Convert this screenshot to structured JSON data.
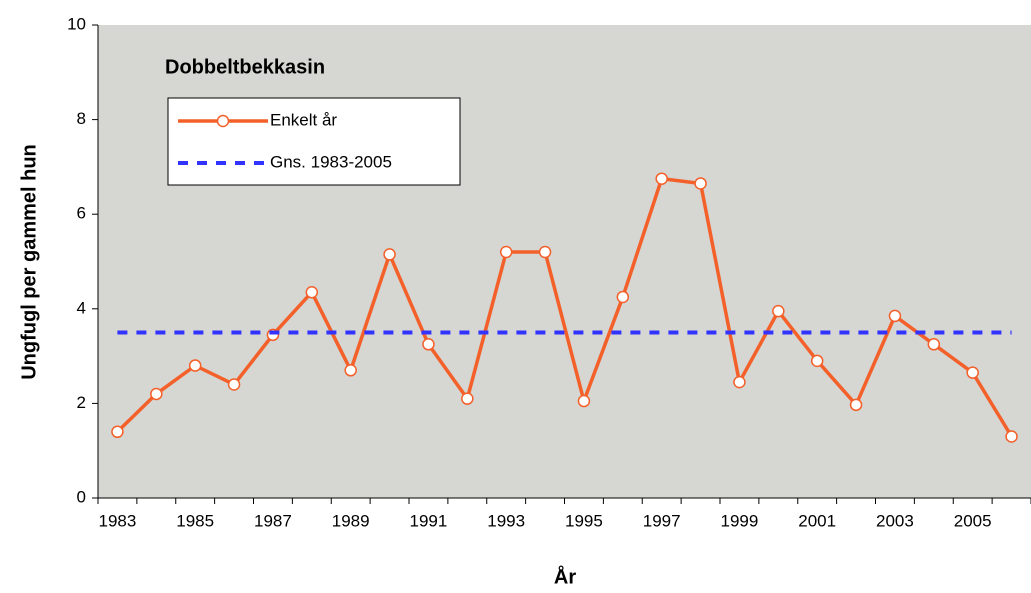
{
  "chart_data": {
    "type": "line",
    "title": "Dobbeltbekkasin",
    "x_label": "År",
    "y_label": "Ungfugl per gammel hun",
    "categories": [
      "1983",
      null,
      "1985",
      null,
      "1987",
      null,
      "1989",
      null,
      "1991",
      null,
      "1993",
      null,
      "1995",
      null,
      "1997",
      null,
      "1999",
      null,
      "2001",
      null,
      "2003",
      null,
      "2005",
      null
    ],
    "series": [
      {
        "name": "Enkelt år",
        "color": "#f4602a",
        "marker": true,
        "values": [
          1.4,
          2.2,
          2.8,
          2.4,
          3.45,
          4.35,
          2.7,
          5.15,
          3.25,
          2.1,
          5.2,
          5.2,
          2.05,
          4.25,
          6.75,
          6.65,
          2.45,
          3.95,
          2.9,
          1.97,
          3.85,
          3.25,
          2.65,
          1.3
        ]
      },
      {
        "name": "Gns. 1983-2005",
        "color": "#3333ff",
        "dashed": true,
        "marker": false,
        "values": [
          3.5,
          3.5,
          3.5,
          3.5,
          3.5,
          3.5,
          3.5,
          3.5,
          3.5,
          3.5,
          3.5,
          3.5,
          3.5,
          3.5,
          3.5,
          3.5,
          3.5,
          3.5,
          3.5,
          3.5,
          3.5,
          3.5,
          3.5,
          3.5
        ]
      }
    ],
    "ylim": [
      0,
      10
    ],
    "yticks": [
      0,
      2,
      4,
      6,
      8,
      10
    ],
    "plot_background": "#d6d6d2"
  }
}
